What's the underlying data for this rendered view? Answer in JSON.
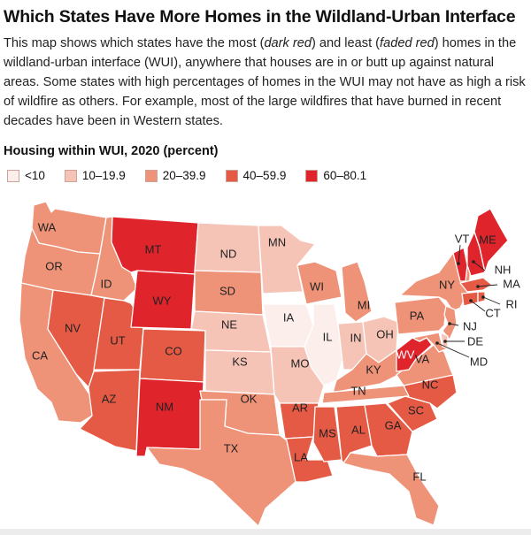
{
  "header": {
    "title": "Which States Have More Homes in the Wildland-Urban Interface",
    "description_parts": [
      "This map shows which states have the most (",
      "dark red",
      ") and least (",
      "faded red",
      ") homes in the wildland-urban interface (WUI), anywhere that houses are in or butt up against natural areas. Some states with high percentages of homes in the WUI may not have as high a risk of wildfire as others. For example, most of the large wildfires that have burned in recent decades have been in Western states."
    ]
  },
  "legend": {
    "title": "Housing within WUI, 2020 (percent)",
    "bins": [
      {
        "label": "<10",
        "color": "#fbeeeb"
      },
      {
        "label": "10–19.9",
        "color": "#f6c4b7"
      },
      {
        "label": "20–39.9",
        "color": "#ee9278"
      },
      {
        "label": "40–59.9",
        "color": "#e55a45"
      },
      {
        "label": "60–80.1",
        "color": "#e0242b"
      }
    ]
  },
  "states": {
    "WA": 2,
    "OR": 2,
    "CA": 2,
    "ID": 2,
    "NV": 3,
    "UT": 3,
    "AZ": 3,
    "MT": 4,
    "WY": 4,
    "CO": 3,
    "NM": 4,
    "ND": 1,
    "SD": 2,
    "NE": 1,
    "KS": 1,
    "OK": 2,
    "TX": 2,
    "MN": 1,
    "IA": 0,
    "MO": 1,
    "AR": 3,
    "LA": 3,
    "WI": 2,
    "IL": 0,
    "MI": 2,
    "IN": 1,
    "OH": 1,
    "KY": 2,
    "TN": 2,
    "MS": 3,
    "AL": 3,
    "GA": 3,
    "FL": 2,
    "SC": 3,
    "NC": 3,
    "VA": 2,
    "WV": 4,
    "PA": 2,
    "NY": 2,
    "VT": 4,
    "NH": 4,
    "ME": 4,
    "MA": 3,
    "RI": 3,
    "CT": 3,
    "NJ": 2,
    "DE": 1,
    "MD": 2
  },
  "state_labels": {
    "WA": "WA",
    "OR": "OR",
    "CA": "CA",
    "ID": "ID",
    "NV": "NV",
    "UT": "UT",
    "AZ": "AZ",
    "MT": "MT",
    "WY": "WY",
    "CO": "CO",
    "NM": "NM",
    "ND": "ND",
    "SD": "SD",
    "NE": "NE",
    "KS": "KS",
    "OK": "OK",
    "TX": "TX",
    "MN": "MN",
    "IA": "IA",
    "MO": "MO",
    "AR": "AR",
    "LA": "LA",
    "WI": "WI",
    "IL": "IL",
    "MI": "MI",
    "IN": "IN",
    "OH": "OH",
    "KY": "KY",
    "TN": "TN",
    "MS": "MS",
    "AL": "AL",
    "GA": "GA",
    "FL": "FL",
    "SC": "SC",
    "NC": "NC",
    "VA": "VA",
    "WV": "WV",
    "PA": "PA",
    "NY": "NY",
    "VT": "VT",
    "NH": "NH",
    "ME": "ME",
    "MA": "MA",
    "RI": "RI",
    "CT": "CT",
    "NJ": "NJ",
    "DE": "DE",
    "MD": "MD"
  }
}
